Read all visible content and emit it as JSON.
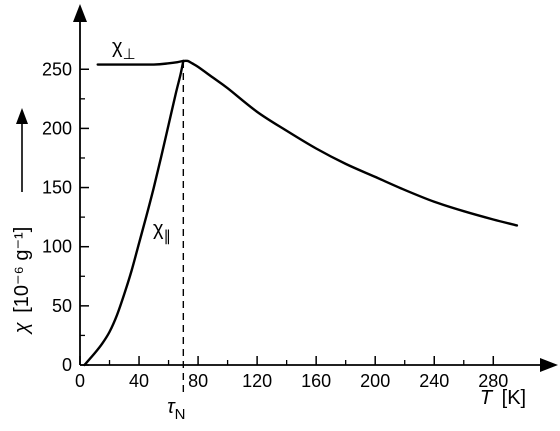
{
  "chart_data": {
    "type": "line",
    "xlabel": "T [K]",
    "xlabel_var": "T",
    "xlabel_unit": "[K]",
    "ylabel": "χ [10⁻⁶ g⁻¹] ⟶",
    "ylabel_var": "χ",
    "ylabel_unit": "[10⁻⁶ g⁻¹]",
    "xlim": [
      0,
      310
    ],
    "ylim": [
      0,
      300
    ],
    "x_ticks": [
      0,
      40,
      80,
      120,
      160,
      200,
      240,
      280
    ],
    "x_minor_ticks": [
      20,
      60,
      100,
      140,
      180,
      220,
      260
    ],
    "y_ticks": [
      0,
      50,
      100,
      150,
      200,
      250
    ],
    "y_minor_ticks": [
      25,
      75,
      125,
      175,
      225
    ],
    "grid": false,
    "annotations": [
      {
        "id": "tau_n",
        "text": "τ",
        "sub": "N",
        "x": 70,
        "style": "dashed-vertical"
      }
    ],
    "series": [
      {
        "name": "χ⊥",
        "name_main": "χ",
        "name_sub": "⊥",
        "x": [
          12,
          30,
          50,
          60,
          66,
          70,
          73,
          76,
          80,
          90,
          100,
          120,
          140,
          160,
          180,
          200,
          220,
          240,
          260,
          280,
          296
        ],
        "values": [
          254,
          254,
          254,
          255,
          256,
          257,
          257,
          255,
          252,
          243,
          234,
          214,
          198,
          183,
          170,
          159,
          148,
          138,
          130,
          123,
          118
        ]
      },
      {
        "name": "χ∥",
        "name_main": "χ",
        "name_sub": "∥",
        "x": [
          3,
          10,
          15,
          20,
          25,
          30,
          35,
          40,
          45,
          50,
          55,
          60,
          65,
          68,
          70
        ],
        "values": [
          0,
          10,
          18,
          28,
          42,
          60,
          80,
          103,
          126,
          150,
          176,
          203,
          230,
          245,
          257
        ]
      }
    ]
  }
}
